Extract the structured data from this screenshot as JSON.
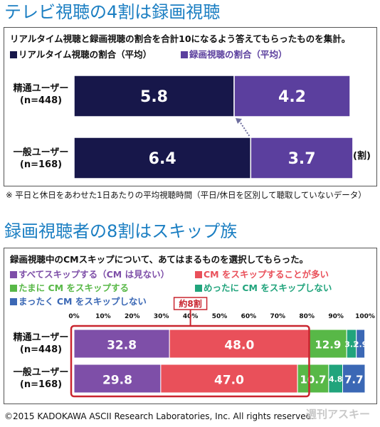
{
  "section1": {
    "title": "テレビ視聴の4割は録画視聴",
    "question": "リアルタイム視聴と録画視聴の割合を合計10になるよう答えてもらったものを集計。",
    "legend": [
      {
        "label": "リアルタイム視聴の割合（平均）",
        "color": "#17174a"
      },
      {
        "label": "録画視聴の割合（平均）",
        "color": "#5b3f9e"
      }
    ],
    "unit": "(割)",
    "note": "※ 平日と休日をあわせた1日あたりの平均視聴時間（平日/休日を区別して聴取していないデータ）"
  },
  "section2": {
    "title": "録画視聴者の8割はスキップ族",
    "question": "録画視聴中のCMスキップについて、あてはまるものを選択してもらった。",
    "legend": [
      {
        "label": "すべてスキップする（CM は見ない）",
        "color": "#7e4fa8"
      },
      {
        "label": "CM をスキップすることが多い",
        "color": "#e9505a"
      },
      {
        "label": "たまに CM をスキップする",
        "color": "#58b847"
      },
      {
        "label": "めったに CM をスキップしない",
        "color": "#21a47c"
      },
      {
        "label": "まったく CM をスキップしない",
        "color": "#3b68b5"
      }
    ],
    "annotation": "約8割"
  },
  "footer": {
    "copyright": "©2015 KADOKAWA ASCII Research Laboratories, Inc. All rights reserved.",
    "watermark": "週刊アスキー"
  },
  "chart_data": [
    {
      "type": "bar",
      "orientation": "horizontal",
      "stacked": true,
      "title": "テレビ視聴の4割は録画視聴",
      "categories": [
        "精通ユーザー\n(n=448)",
        "一般ユーザー\n(n=168)"
      ],
      "series": [
        {
          "name": "リアルタイム視聴の割合（平均）",
          "values": [
            5.8,
            6.4
          ],
          "color": "#17174a"
        },
        {
          "name": "録画視聴の割合（平均）",
          "values": [
            4.2,
            3.7
          ],
          "color": "#5b3f9e"
        }
      ],
      "xlim": [
        0,
        10
      ],
      "unit": "(割)"
    },
    {
      "type": "bar",
      "orientation": "horizontal",
      "stacked": true,
      "title": "録画視聴者の8割はスキップ族",
      "categories": [
        "精通ユーザー\n(n=448)",
        "一般ユーザー\n(n=168)"
      ],
      "series": [
        {
          "name": "すべてスキップする（CM は見ない）",
          "values": [
            32.8,
            29.8
          ],
          "color": "#7e4fa8"
        },
        {
          "name": "CM をスキップすることが多い",
          "values": [
            48.0,
            47.0
          ],
          "color": "#e9505a"
        },
        {
          "name": "たまに CM をスキップする",
          "values": [
            12.9,
            10.7
          ],
          "color": "#58b847"
        },
        {
          "name": "めったに CM をスキップしない",
          "values": [
            3.3,
            4.8
          ],
          "color": "#21a47c"
        },
        {
          "name": "まったく CM をスキップしない",
          "values": [
            2.9,
            7.7
          ],
          "color": "#3b68b5"
        }
      ],
      "xlim": [
        0,
        100
      ],
      "xticks": [
        "0%",
        "10%",
        "20%",
        "30%",
        "40%",
        "50%",
        "60%",
        "70%",
        "80%",
        "90%",
        "100%"
      ],
      "annotation": "約8割"
    }
  ]
}
